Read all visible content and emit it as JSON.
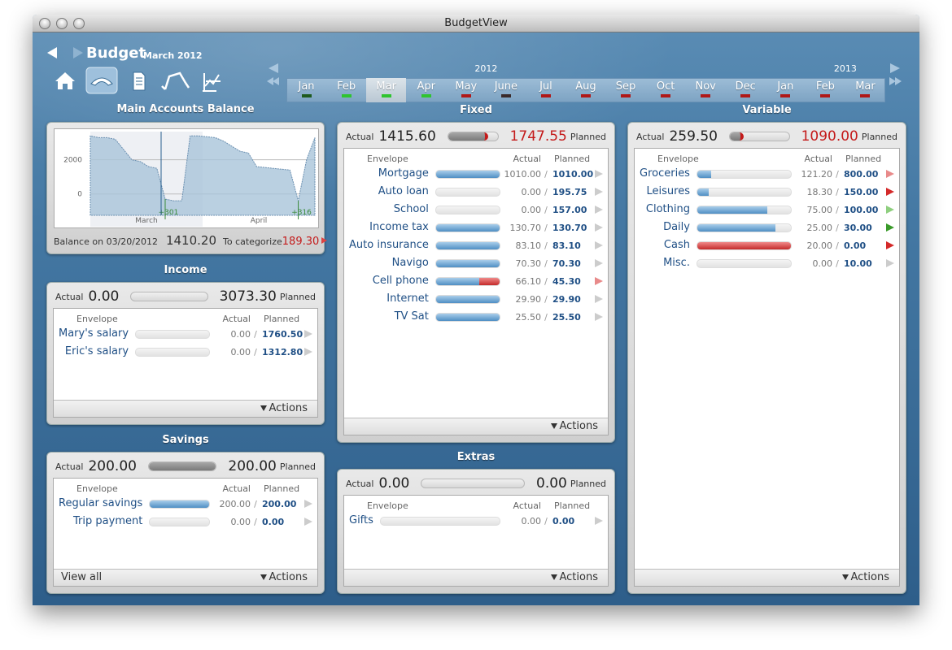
{
  "window_title": "BudgetView",
  "header": {
    "title": "Budget",
    "subtitle": "March 2012"
  },
  "timeline": {
    "years": [
      "2012",
      "2013"
    ],
    "selected": 2,
    "months": [
      {
        "label": "Jan",
        "indicator": "#1e5a1e"
      },
      {
        "label": "Feb",
        "indicator": "#2fc42f"
      },
      {
        "label": "Mar",
        "indicator": "#2fc42f"
      },
      {
        "label": "Apr",
        "indicator": "#2fc42f"
      },
      {
        "label": "May",
        "indicator": "#b01818"
      },
      {
        "label": "June",
        "indicator": "#3a2a2a"
      },
      {
        "label": "Jul",
        "indicator": "#b01818"
      },
      {
        "label": "Aug",
        "indicator": "#b01818"
      },
      {
        "label": "Sep",
        "indicator": "#b01818"
      },
      {
        "label": "Oct",
        "indicator": "#b01818"
      },
      {
        "label": "Nov",
        "indicator": "#b01818"
      },
      {
        "label": "Dec",
        "indicator": "#b01818"
      },
      {
        "label": "Jan",
        "indicator": "#b01818"
      },
      {
        "label": "Feb",
        "indicator": "#b01818"
      },
      {
        "label": "Mar",
        "indicator": "#b01818"
      }
    ]
  },
  "separator": "/",
  "main_accounts": {
    "title": "Main Accounts Balance",
    "chart": {
      "type": "area",
      "ylim": [
        -1250,
        3650
      ],
      "yticks": [
        2000,
        0
      ],
      "months": [
        "March",
        "April"
      ],
      "values": [
        3400,
        3300,
        3300,
        3200,
        2600,
        2000,
        1900,
        1600,
        1500,
        -300,
        -400,
        -400,
        3400,
        3400,
        3350,
        3300,
        3100,
        2800,
        2500,
        2400,
        1600,
        1550,
        1500,
        1450,
        1400,
        -400,
        2000,
        3300
      ],
      "annotations": [
        {
          "label": "+301",
          "at": 9
        },
        {
          "label": "+316",
          "at": 25
        }
      ]
    },
    "balance_label": "Balance on 03/20/2012",
    "balance": "1410.20",
    "categorize_label": "To categorize",
    "categorize": "189.30"
  },
  "income": {
    "title": "Income",
    "actual_label": "Actual",
    "actual": "0.00",
    "planned": "3073.30",
    "planned_label": "Planned",
    "columns": [
      "Envelope",
      "Actual",
      "Planned"
    ],
    "rows": [
      {
        "name": "Mary's salary",
        "actual": "0.00",
        "planned": "1760.50"
      },
      {
        "name": "Eric's salary",
        "actual": "0.00",
        "planned": "1312.80"
      }
    ],
    "actions": "Actions"
  },
  "savings": {
    "title": "Savings",
    "actual_label": "Actual",
    "actual": "200.00",
    "planned": "200.00",
    "planned_label": "Planned",
    "columns": [
      "Envelope",
      "Actual",
      "Planned"
    ],
    "rows": [
      {
        "name": "Regular savings",
        "actual": "200.00",
        "planned": "200.00"
      },
      {
        "name": "Trip payment",
        "actual": "0.00",
        "planned": "0.00"
      }
    ],
    "view_all": "View all",
    "actions": "Actions"
  },
  "fixed": {
    "title": "Fixed",
    "actual_label": "Actual",
    "actual": "1415.60",
    "planned": "1747.55",
    "planned_color": "#c41a1a",
    "planned_label": "Planned",
    "columns": [
      "Envelope",
      "Actual",
      "Planned"
    ],
    "rows": [
      {
        "name": "Mortgage",
        "actual": "1010.00",
        "planned": "1010.00"
      },
      {
        "name": "Auto loan",
        "actual": "0.00",
        "planned": "195.75"
      },
      {
        "name": "School",
        "actual": "0.00",
        "planned": "157.00"
      },
      {
        "name": "Income tax",
        "actual": "130.70",
        "planned": "130.70"
      },
      {
        "name": "Auto insurance",
        "actual": "83.10",
        "planned": "83.10"
      },
      {
        "name": "Navigo",
        "actual": "70.30",
        "planned": "70.30"
      },
      {
        "name": "Cell phone",
        "actual": "66.10",
        "planned": "45.30",
        "arrow": "#e88a8a"
      },
      {
        "name": "Internet",
        "actual": "29.90",
        "planned": "29.90"
      },
      {
        "name": "TV Sat",
        "actual": "25.50",
        "planned": "25.50"
      }
    ],
    "actions": "Actions"
  },
  "extras": {
    "title": "Extras",
    "actual_label": "Actual",
    "actual": "0.00",
    "planned": "0.00",
    "planned_label": "Planned",
    "columns": [
      "Envelope",
      "Actual",
      "Planned"
    ],
    "rows": [
      {
        "name": "Gifts",
        "actual": "0.00",
        "planned": "0.00"
      }
    ],
    "actions": "Actions"
  },
  "variable": {
    "title": "Variable",
    "actual_label": "Actual",
    "actual": "259.50",
    "planned": "1090.00",
    "planned_color": "#c41a1a",
    "planned_label": "Planned",
    "columns": [
      "Envelope",
      "Actual",
      "Planned"
    ],
    "rows": [
      {
        "name": "Groceries",
        "actual": "121.20",
        "planned": "800.00",
        "arrow": "#e88a8a"
      },
      {
        "name": "Leisures",
        "actual": "18.30",
        "planned": "150.00",
        "arrow": "#d42a2a"
      },
      {
        "name": "Clothing",
        "actual": "75.00",
        "planned": "100.00",
        "arrow": "#8fcf7f"
      },
      {
        "name": "Daily",
        "actual": "25.00",
        "planned": "30.00",
        "arrow": "#3a9a2a"
      },
      {
        "name": "Cash",
        "actual": "20.00",
        "planned": "0.00",
        "arrow": "#d42a2a"
      },
      {
        "name": "Misc.",
        "actual": "0.00",
        "planned": "10.00"
      }
    ],
    "actions": "Actions"
  }
}
